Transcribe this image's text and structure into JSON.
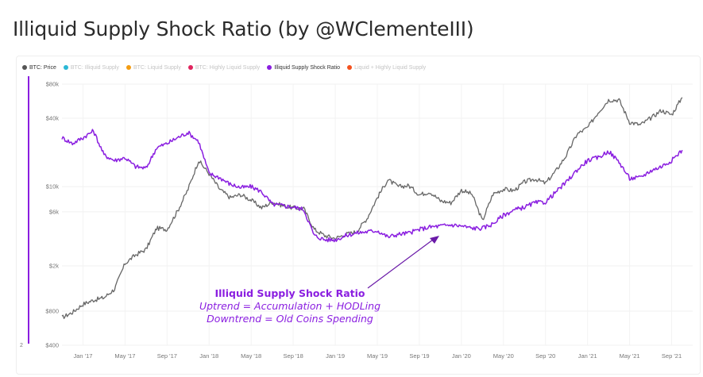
{
  "page": {
    "title": "Illiquid Supply Shock Ratio (by @WClementeIII)"
  },
  "legend": [
    {
      "label": "BTC: Price",
      "color": "#555555",
      "active": true
    },
    {
      "label": "BTC: Illiquid Supply",
      "color": "#2bb8d6",
      "active": false
    },
    {
      "label": "BTC: Liquid Supply",
      "color": "#f39c12",
      "active": false
    },
    {
      "label": "BTC: Highly Liquid Supply",
      "color": "#e0245e",
      "active": false
    },
    {
      "label": "Illiquid Supply Shock Ratio",
      "color": "#8a1ee0",
      "active": true
    },
    {
      "label": "Liquid + Highly Liquid Supply",
      "color": "#f4511e",
      "active": false
    }
  ],
  "annotation": {
    "line1": "Illiquid Supply Shock Ratio",
    "line2": "Uptrend = Accumulation + HODLing",
    "line3": "Downtrend = Old Coins Spending"
  },
  "chart_data": {
    "type": "line",
    "y_scale": "log",
    "ylim": [
      400,
      80000
    ],
    "xlim": [
      "2016-11",
      "2021-11"
    ],
    "y_ticks": [
      {
        "value": 80000,
        "label": "$80k"
      },
      {
        "value": 40000,
        "label": "$40k"
      },
      {
        "value": 10000,
        "label": "$10k"
      },
      {
        "value": 6000,
        "label": "$6k"
      },
      {
        "value": 2000,
        "label": "$2k"
      },
      {
        "value": 800,
        "label": "$800"
      },
      {
        "value": 400,
        "label": "$400"
      }
    ],
    "y2_ticks": [
      {
        "label": "2"
      }
    ],
    "x_ticks": [
      {
        "date": "2017-01",
        "label": "Jan '17"
      },
      {
        "date": "2017-05",
        "label": "May '17"
      },
      {
        "date": "2017-09",
        "label": "Sep '17"
      },
      {
        "date": "2018-01",
        "label": "Jan '18"
      },
      {
        "date": "2018-05",
        "label": "May '18"
      },
      {
        "date": "2018-09",
        "label": "Sep '18"
      },
      {
        "date": "2019-01",
        "label": "Jan '19"
      },
      {
        "date": "2019-05",
        "label": "May '19"
      },
      {
        "date": "2019-09",
        "label": "Sep '19"
      },
      {
        "date": "2020-01",
        "label": "Jan '20"
      },
      {
        "date": "2020-05",
        "label": "May '20"
      },
      {
        "date": "2020-09",
        "label": "Sep '20"
      },
      {
        "date": "2021-01",
        "label": "Jan '21"
      },
      {
        "date": "2021-05",
        "label": "May '21"
      },
      {
        "date": "2021-09",
        "label": "Sep '21"
      }
    ],
    "series": [
      {
        "name": "BTC: Price",
        "color": "#666666",
        "points": [
          [
            "2016-11",
            700
          ],
          [
            "2016-12",
            780
          ],
          [
            "2017-01",
            920
          ],
          [
            "2017-02",
            1000
          ],
          [
            "2017-03",
            1050
          ],
          [
            "2017-04",
            1250
          ],
          [
            "2017-05",
            2100
          ],
          [
            "2017-06",
            2500
          ],
          [
            "2017-07",
            2800
          ],
          [
            "2017-08",
            4300
          ],
          [
            "2017-09",
            4200
          ],
          [
            "2017-10",
            6100
          ],
          [
            "2017-11",
            9500
          ],
          [
            "2017-12",
            17000
          ],
          [
            "2018-01",
            13000
          ],
          [
            "2018-02",
            9500
          ],
          [
            "2018-03",
            8000
          ],
          [
            "2018-04",
            8500
          ],
          [
            "2018-05",
            7600
          ],
          [
            "2018-06",
            6500
          ],
          [
            "2018-07",
            7300
          ],
          [
            "2018-08",
            6800
          ],
          [
            "2018-09",
            6500
          ],
          [
            "2018-10",
            6400
          ],
          [
            "2018-11",
            4200
          ],
          [
            "2018-12",
            3700
          ],
          [
            "2019-01",
            3500
          ],
          [
            "2019-02",
            3800
          ],
          [
            "2019-03",
            4000
          ],
          [
            "2019-04",
            5200
          ],
          [
            "2019-05",
            8000
          ],
          [
            "2019-06",
            11500
          ],
          [
            "2019-07",
            10000
          ],
          [
            "2019-08",
            10200
          ],
          [
            "2019-09",
            8500
          ],
          [
            "2019-10",
            9000
          ],
          [
            "2019-11",
            7500
          ],
          [
            "2019-12",
            7200
          ],
          [
            "2020-01",
            9300
          ],
          [
            "2020-02",
            8600
          ],
          [
            "2020-03",
            5000
          ],
          [
            "2020-04",
            8600
          ],
          [
            "2020-05",
            9500
          ],
          [
            "2020-06",
            9200
          ],
          [
            "2020-07",
            11000
          ],
          [
            "2020-08",
            11700
          ],
          [
            "2020-09",
            10700
          ],
          [
            "2020-10",
            13800
          ],
          [
            "2020-11",
            19000
          ],
          [
            "2020-12",
            29000
          ],
          [
            "2021-01",
            33000
          ],
          [
            "2021-02",
            45000
          ],
          [
            "2021-03",
            58000
          ],
          [
            "2021-04",
            58000
          ],
          [
            "2021-05",
            37000
          ],
          [
            "2021-06",
            35000
          ],
          [
            "2021-07",
            40000
          ],
          [
            "2021-08",
            47000
          ],
          [
            "2021-09",
            43000
          ],
          [
            "2021-10",
            61000
          ]
        ]
      },
      {
        "name": "Illiquid Supply Shock Ratio",
        "color": "#8a1ee0",
        "points": [
          [
            "2016-11",
            27000
          ],
          [
            "2016-12",
            24000
          ],
          [
            "2017-01",
            27000
          ],
          [
            "2017-02",
            31000
          ],
          [
            "2017-03",
            19000
          ],
          [
            "2017-04",
            17000
          ],
          [
            "2017-05",
            18000
          ],
          [
            "2017-06",
            15000
          ],
          [
            "2017-07",
            14500
          ],
          [
            "2017-08",
            22000
          ],
          [
            "2017-09",
            24000
          ],
          [
            "2017-10",
            27000
          ],
          [
            "2017-11",
            30000
          ],
          [
            "2017-12",
            25000
          ],
          [
            "2018-01",
            13000
          ],
          [
            "2018-02",
            12000
          ],
          [
            "2018-03",
            10500
          ],
          [
            "2018-04",
            9800
          ],
          [
            "2018-05",
            10000
          ],
          [
            "2018-06",
            9000
          ],
          [
            "2018-07",
            7000
          ],
          [
            "2018-08",
            6800
          ],
          [
            "2018-09",
            6600
          ],
          [
            "2018-10",
            6300
          ],
          [
            "2018-11",
            3700
          ],
          [
            "2018-12",
            3400
          ],
          [
            "2019-01",
            3400
          ],
          [
            "2019-02",
            3700
          ],
          [
            "2019-03",
            3900
          ],
          [
            "2019-04",
            4000
          ],
          [
            "2019-05",
            4100
          ],
          [
            "2019-06",
            3600
          ],
          [
            "2019-07",
            3800
          ],
          [
            "2019-08",
            3900
          ],
          [
            "2019-09",
            4200
          ],
          [
            "2019-10",
            4400
          ],
          [
            "2019-11",
            4500
          ],
          [
            "2019-12",
            4600
          ],
          [
            "2020-01",
            4500
          ],
          [
            "2020-02",
            4300
          ],
          [
            "2020-03",
            4300
          ],
          [
            "2020-04",
            4700
          ],
          [
            "2020-05",
            5600
          ],
          [
            "2020-06",
            6200
          ],
          [
            "2020-07",
            6600
          ],
          [
            "2020-08",
            7200
          ],
          [
            "2020-09",
            7300
          ],
          [
            "2020-10",
            9000
          ],
          [
            "2020-11",
            11000
          ],
          [
            "2020-12",
            14000
          ],
          [
            "2021-01",
            17000
          ],
          [
            "2021-02",
            18000
          ],
          [
            "2021-03",
            20500
          ],
          [
            "2021-04",
            16500
          ],
          [
            "2021-05",
            11800
          ],
          [
            "2021-06",
            12000
          ],
          [
            "2021-07",
            13800
          ],
          [
            "2021-08",
            15000
          ],
          [
            "2021-09",
            17000
          ],
          [
            "2021-10",
            21000
          ]
        ]
      }
    ]
  }
}
